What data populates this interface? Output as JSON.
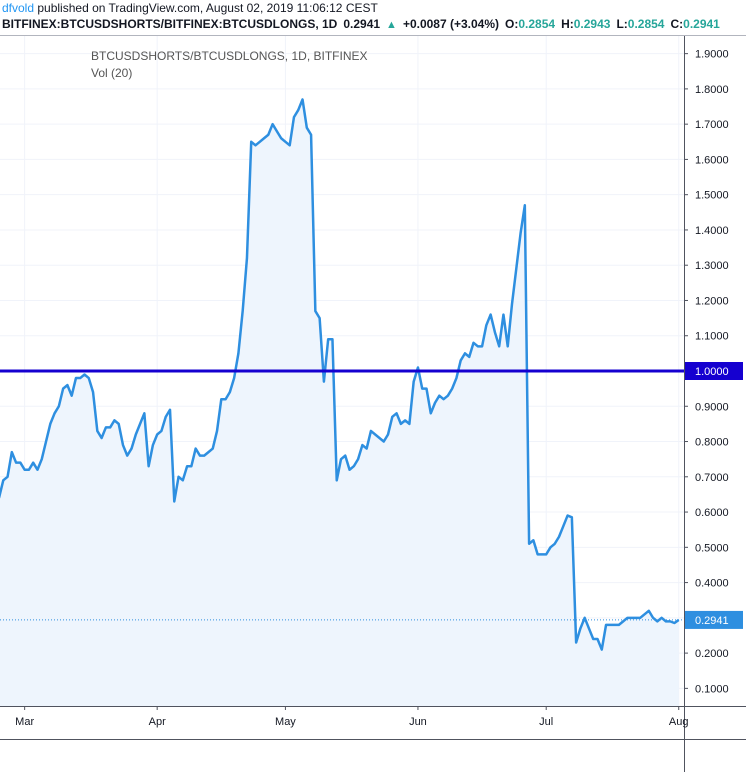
{
  "header": {
    "author": "dfvold",
    "published_text": " published on TradingView.com, August 02, 2019 11:06:12 CEST",
    "symbol": "BITFINEX:BTCUSDSHORTS/BITFINEX:BTCUSDLONGS, 1D",
    "last": "0.2941",
    "change": "+0.0087 (+3.04%)",
    "o_label": "O:",
    "o_value": "0.2854",
    "h_label": "H:",
    "h_value": "0.2943",
    "l_label": "L:",
    "l_value": "0.2854",
    "c_label": "C:",
    "c_value": "0.2941"
  },
  "legend": {
    "symbol_line": "BTCUSDSHORTS/BTCUSDLONGS, 1D, BITFINEX",
    "volume_line": "Vol (20)"
  },
  "colors": {
    "line": "#2e8fe0",
    "area": "#eef5fd",
    "horizontal_line": "#1500d0",
    "price_label": "#2e8fe0",
    "grid": "#f0f3fa",
    "green": "#26a69a"
  },
  "chart_data": {
    "type": "area",
    "title": "BTCUSDSHORTS/BTCUSDLONGS, 1D, BITFINEX",
    "ylim": [
      0.05,
      1.95
    ],
    "y_ticks": [
      "0.1000",
      "0.2000",
      "0.3000",
      "0.4000",
      "0.5000",
      "0.6000",
      "0.7000",
      "0.8000",
      "0.9000",
      "1.0000",
      "1.1000",
      "1.2000",
      "1.3000",
      "1.4000",
      "1.5000",
      "1.6000",
      "1.7000",
      "1.8000",
      "1.9000"
    ],
    "x_ticks": [
      {
        "label": "Mar",
        "day": 0
      },
      {
        "label": "Apr",
        "day": 31
      },
      {
        "label": "May",
        "day": 61
      },
      {
        "label": "Jun",
        "day": 92
      },
      {
        "label": "Jul",
        "day": 122
      },
      {
        "label": "Aug",
        "day": 153
      }
    ],
    "x_start_day": -6,
    "x_end_day": 154,
    "horizontal_line": {
      "value": 1.0,
      "label": "1.0000"
    },
    "last_price": {
      "value": 0.2941,
      "label": "0.2941"
    },
    "series": [
      {
        "points": [
          [
            -6,
            0.64
          ],
          [
            -5,
            0.69
          ],
          [
            -4,
            0.7
          ],
          [
            -3,
            0.77
          ],
          [
            -2,
            0.74
          ],
          [
            -1,
            0.74
          ],
          [
            0,
            0.72
          ],
          [
            1,
            0.72
          ],
          [
            2,
            0.74
          ],
          [
            3,
            0.72
          ],
          [
            4,
            0.75
          ],
          [
            5,
            0.8
          ],
          [
            6,
            0.85
          ],
          [
            7,
            0.88
          ],
          [
            8,
            0.9
          ],
          [
            9,
            0.95
          ],
          [
            10,
            0.96
          ],
          [
            11,
            0.93
          ],
          [
            12,
            0.98
          ],
          [
            13,
            0.98
          ],
          [
            14,
            0.99
          ],
          [
            15,
            0.98
          ],
          [
            16,
            0.94
          ],
          [
            17,
            0.83
          ],
          [
            18,
            0.81
          ],
          [
            19,
            0.84
          ],
          [
            20,
            0.84
          ],
          [
            21,
            0.86
          ],
          [
            22,
            0.85
          ],
          [
            23,
            0.79
          ],
          [
            24,
            0.76
          ],
          [
            25,
            0.78
          ],
          [
            26,
            0.82
          ],
          [
            27,
            0.85
          ],
          [
            28,
            0.88
          ],
          [
            29,
            0.73
          ],
          [
            30,
            0.79
          ],
          [
            31,
            0.82
          ],
          [
            32,
            0.83
          ],
          [
            33,
            0.87
          ],
          [
            34,
            0.89
          ],
          [
            35,
            0.63
          ],
          [
            36,
            0.7
          ],
          [
            37,
            0.69
          ],
          [
            38,
            0.73
          ],
          [
            39,
            0.73
          ],
          [
            40,
            0.78
          ],
          [
            41,
            0.76
          ],
          [
            42,
            0.76
          ],
          [
            43,
            0.77
          ],
          [
            44,
            0.78
          ],
          [
            45,
            0.83
          ],
          [
            46,
            0.92
          ],
          [
            47,
            0.92
          ],
          [
            48,
            0.94
          ],
          [
            49,
            0.98
          ],
          [
            50,
            1.05
          ],
          [
            51,
            1.17
          ],
          [
            52,
            1.32
          ],
          [
            53,
            1.65
          ],
          [
            54,
            1.64
          ],
          [
            55,
            1.65
          ],
          [
            56,
            1.66
          ],
          [
            57,
            1.67
          ],
          [
            58,
            1.7
          ],
          [
            59,
            1.68
          ],
          [
            60,
            1.66
          ],
          [
            61,
            1.65
          ],
          [
            62,
            1.64
          ],
          [
            63,
            1.72
          ],
          [
            64,
            1.74
          ],
          [
            65,
            1.77
          ],
          [
            66,
            1.69
          ],
          [
            67,
            1.67
          ],
          [
            68,
            1.17
          ],
          [
            69,
            1.15
          ],
          [
            70,
            0.97
          ],
          [
            71,
            1.09
          ],
          [
            72,
            1.09
          ],
          [
            73,
            0.69
          ],
          [
            74,
            0.75
          ],
          [
            75,
            0.76
          ],
          [
            76,
            0.72
          ],
          [
            77,
            0.73
          ],
          [
            78,
            0.75
          ],
          [
            79,
            0.79
          ],
          [
            80,
            0.78
          ],
          [
            81,
            0.83
          ],
          [
            82,
            0.82
          ],
          [
            83,
            0.81
          ],
          [
            84,
            0.8
          ],
          [
            85,
            0.82
          ],
          [
            86,
            0.87
          ],
          [
            87,
            0.88
          ],
          [
            88,
            0.85
          ],
          [
            89,
            0.86
          ],
          [
            90,
            0.85
          ],
          [
            91,
            0.97
          ],
          [
            92,
            1.01
          ],
          [
            93,
            0.95
          ],
          [
            94,
            0.95
          ],
          [
            95,
            0.88
          ],
          [
            96,
            0.91
          ],
          [
            97,
            0.93
          ],
          [
            98,
            0.92
          ],
          [
            99,
            0.93
          ],
          [
            100,
            0.95
          ],
          [
            101,
            0.98
          ],
          [
            102,
            1.03
          ],
          [
            103,
            1.05
          ],
          [
            104,
            1.04
          ],
          [
            105,
            1.08
          ],
          [
            106,
            1.07
          ],
          [
            107,
            1.07
          ],
          [
            108,
            1.13
          ],
          [
            109,
            1.16
          ],
          [
            110,
            1.11
          ],
          [
            111,
            1.07
          ],
          [
            112,
            1.16
          ],
          [
            113,
            1.07
          ],
          [
            114,
            1.19
          ],
          [
            115,
            1.29
          ],
          [
            116,
            1.39
          ],
          [
            117,
            1.47
          ],
          [
            118,
            0.51
          ],
          [
            119,
            0.52
          ],
          [
            120,
            0.48
          ],
          [
            121,
            0.48
          ],
          [
            122,
            0.48
          ],
          [
            123,
            0.5
          ],
          [
            124,
            0.51
          ],
          [
            125,
            0.53
          ],
          [
            126,
            0.56
          ],
          [
            127,
            0.59
          ],
          [
            128,
            0.585
          ],
          [
            129,
            0.23
          ],
          [
            130,
            0.27
          ],
          [
            131,
            0.3
          ],
          [
            132,
            0.27
          ],
          [
            133,
            0.24
          ],
          [
            134,
            0.24
          ],
          [
            135,
            0.21
          ],
          [
            136,
            0.28
          ],
          [
            137,
            0.28
          ],
          [
            138,
            0.28
          ],
          [
            139,
            0.28
          ],
          [
            140,
            0.29
          ],
          [
            141,
            0.3
          ],
          [
            142,
            0.3
          ],
          [
            143,
            0.3
          ],
          [
            144,
            0.3
          ],
          [
            145,
            0.31
          ],
          [
            146,
            0.32
          ],
          [
            147,
            0.3
          ],
          [
            148,
            0.29
          ],
          [
            149,
            0.3
          ],
          [
            150,
            0.29
          ],
          [
            151,
            0.29
          ],
          [
            152,
            0.2854
          ],
          [
            153,
            0.2941
          ]
        ]
      }
    ]
  }
}
